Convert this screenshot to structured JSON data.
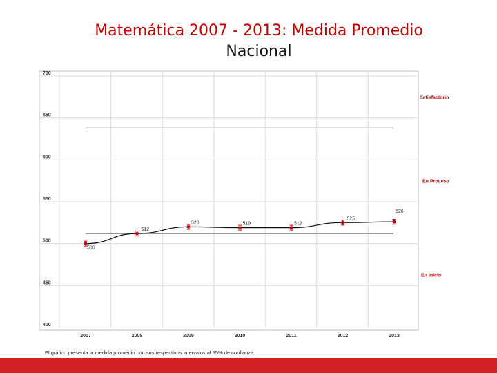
{
  "chart_data": {
    "type": "line",
    "title": "Matemática 2007 - 2013: Medida Promedio",
    "subtitle": "Nacional",
    "categories": [
      "2007",
      "2008",
      "2009",
      "2010",
      "2011",
      "2012",
      "2013"
    ],
    "series": [
      {
        "name": "Medida promedio",
        "values": [
          500,
          512,
          520,
          519,
          519,
          525,
          526
        ],
        "labels": [
          "500",
          "512",
          "520",
          "519",
          "519",
          "525",
          "526"
        ]
      }
    ],
    "ylim": [
      400,
      700
    ],
    "yticks": [
      "400",
      "450",
      "500",
      "550",
      "600",
      "650",
      "700"
    ],
    "reference_lines": [
      {
        "name": "En Proceso / Satisfactorio",
        "value": 638
      },
      {
        "name": "En Inicio / En Proceso",
        "value": 512
      }
    ],
    "level_labels": [
      {
        "label": "Satisfactorio",
        "value": 675
      },
      {
        "label": "En Proceso",
        "value": 575
      },
      {
        "label": "En Inicio",
        "value": 463
      }
    ],
    "colors": {
      "title": "#c00000",
      "level": "#c00000",
      "marker": "#c00000",
      "line": "#111111",
      "bar": "#d41f26"
    }
  },
  "footnote": "El gráfico presenta la medida promedio con sus respectivos intervalos al 95% de confianza."
}
